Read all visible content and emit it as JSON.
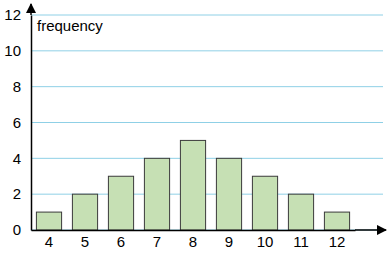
{
  "chart_data": {
    "type": "bar",
    "ylabel": "frequency",
    "categories": [
      "4",
      "5",
      "6",
      "7",
      "8",
      "9",
      "10",
      "11",
      "12"
    ],
    "values": [
      1,
      2,
      3,
      4,
      5,
      4,
      3,
      2,
      1
    ],
    "color": "#c6e0b4",
    "ylim": [
      0,
      12
    ],
    "yticks": [
      0,
      2,
      4,
      6,
      8,
      10,
      12
    ],
    "grid": true
  }
}
